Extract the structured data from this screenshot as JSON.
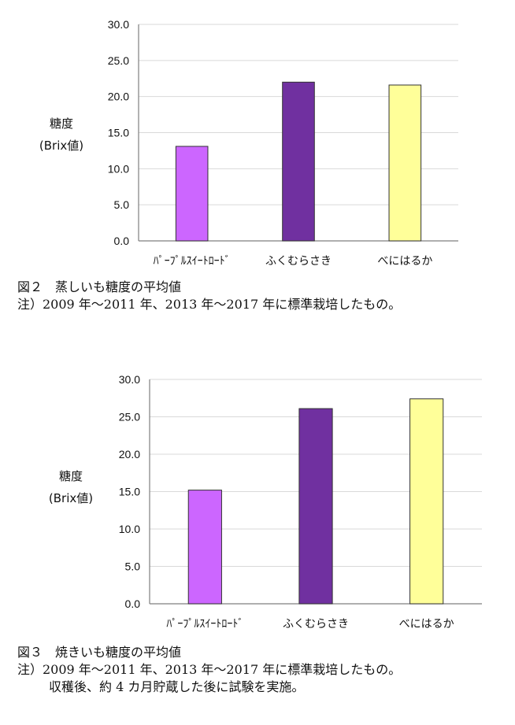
{
  "chart_data": [
    {
      "type": "bar",
      "ylabel_lines": [
        "糖度",
        "(Brix値)"
      ],
      "categories": [
        "ﾊﾟｰﾌﾟﾙｽｲｰﾄﾛｰﾄﾞ",
        "ふくむらさき",
        "べにはるか"
      ],
      "values": [
        13.1,
        22.0,
        21.6
      ],
      "bar_colors": [
        "#cc66ff",
        "#7030a0",
        "#ffff99"
      ],
      "ylim": [
        0,
        30
      ],
      "yticks": [
        "0.0",
        "5.0",
        "10.0",
        "15.0",
        "20.0",
        "25.0",
        "30.0"
      ],
      "grid": true,
      "figure_label": "図２",
      "caption_title": "蒸しいも糖度の平均値",
      "notes": [
        "注）2009 年～2011 年、2013 年～2017 年に標準栽培したもの。"
      ]
    },
    {
      "type": "bar",
      "ylabel_lines": [
        "糖度",
        "(Brix値)"
      ],
      "categories": [
        "ﾊﾟｰﾌﾟﾙｽｲｰﾄﾛｰﾄﾞ",
        "ふくむらさき",
        "べにはるか"
      ],
      "values": [
        15.2,
        26.1,
        27.4
      ],
      "bar_colors": [
        "#cc66ff",
        "#7030a0",
        "#ffff99"
      ],
      "ylim": [
        0,
        30
      ],
      "yticks": [
        "0.0",
        "5.0",
        "10.0",
        "15.0",
        "20.0",
        "25.0",
        "30.0"
      ],
      "grid": true,
      "figure_label": "図３",
      "caption_title": "焼きいも糖度の平均値",
      "notes": [
        "注）2009 年～2011 年、2013 年～2017 年に標準栽培したもの。",
        "収穫後、約 4 カ月貯蔵した後に試験を実施。"
      ]
    }
  ]
}
